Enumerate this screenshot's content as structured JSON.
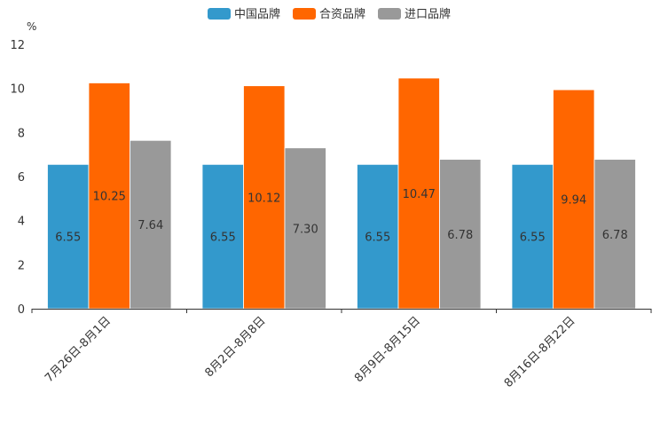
{
  "chart_data": {
    "type": "bar",
    "title": "",
    "ylabel": "%",
    "xlabel": "",
    "ylim": [
      0,
      12
    ],
    "yticks": [
      0,
      2,
      4,
      6,
      8,
      10,
      12
    ],
    "categories": [
      "7月26日-8月1日",
      "8月2日-8月8日",
      "8月9日-8月15日",
      "8月16日-8月22日"
    ],
    "series": [
      {
        "name": "中国品牌",
        "color": "#3399CC",
        "values": [
          6.55,
          6.55,
          6.55,
          6.55
        ],
        "labels": [
          "6.55",
          "6.55",
          "6.55",
          "6.55"
        ]
      },
      {
        "name": "合资品牌",
        "color": "#FF6600",
        "values": [
          10.25,
          10.12,
          10.47,
          9.94
        ],
        "labels": [
          "10.25",
          "10.12",
          "10.47",
          "9.94"
        ]
      },
      {
        "name": "进口品牌",
        "color": "#999999",
        "values": [
          7.64,
          7.3,
          6.78,
          6.78
        ],
        "labels": [
          "7.64",
          "7.30",
          "6.78",
          "6.78"
        ]
      }
    ],
    "legend_position": "top-center",
    "grid": false
  }
}
